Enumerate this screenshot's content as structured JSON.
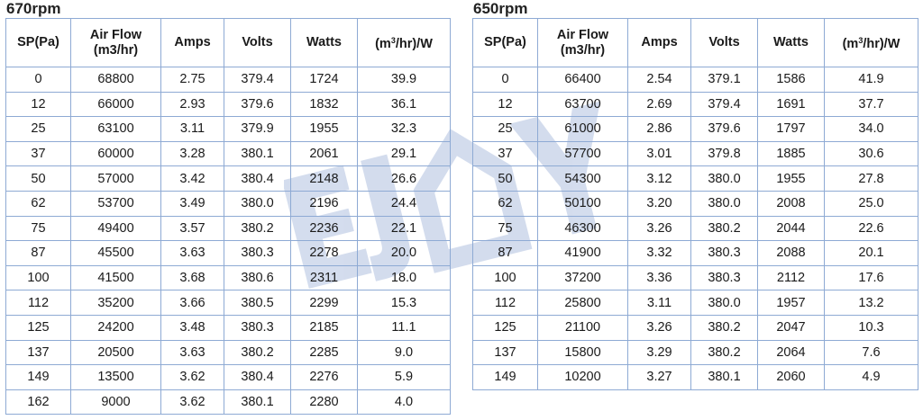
{
  "tables": [
    {
      "title": "670rpm",
      "headers": {
        "sp": "SP(Pa)",
        "airflow_line1": "Air Flow",
        "airflow_line2": "(m3/hr)",
        "amps": "Amps",
        "volts": "Volts",
        "watts": "Watts",
        "eff_prefix": "(m",
        "eff_sup": "3",
        "eff_suffix": "/hr)/W"
      },
      "rows": [
        [
          "0",
          "68800",
          "2.75",
          "379.4",
          "1724",
          "39.9"
        ],
        [
          "12",
          "66000",
          "2.93",
          "379.6",
          "1832",
          "36.1"
        ],
        [
          "25",
          "63100",
          "3.11",
          "379.9",
          "1955",
          "32.3"
        ],
        [
          "37",
          "60000",
          "3.28",
          "380.1",
          "2061",
          "29.1"
        ],
        [
          "50",
          "57000",
          "3.42",
          "380.4",
          "2148",
          "26.6"
        ],
        [
          "62",
          "53700",
          "3.49",
          "380.0",
          "2196",
          "24.4"
        ],
        [
          "75",
          "49400",
          "3.57",
          "380.2",
          "2236",
          "22.1"
        ],
        [
          "87",
          "45500",
          "3.63",
          "380.3",
          "2278",
          "20.0"
        ],
        [
          "100",
          "41500",
          "3.68",
          "380.6",
          "2311",
          "18.0"
        ],
        [
          "112",
          "35200",
          "3.66",
          "380.5",
          "2299",
          "15.3"
        ],
        [
          "125",
          "24200",
          "3.48",
          "380.3",
          "2185",
          "11.1"
        ],
        [
          "137",
          "20500",
          "3.63",
          "380.2",
          "2285",
          "9.0"
        ],
        [
          "149",
          "13500",
          "3.62",
          "380.4",
          "2276",
          "5.9"
        ],
        [
          "162",
          "9000",
          "3.62",
          "380.1",
          "2280",
          "4.0"
        ]
      ]
    },
    {
      "title": "650rpm",
      "headers": {
        "sp": "SP(Pa)",
        "airflow_line1": "Air Flow",
        "airflow_line2": "(m3/hr)",
        "amps": "Amps",
        "volts": "Volts",
        "watts": "Watts",
        "eff_prefix": "(m",
        "eff_sup": "3",
        "eff_suffix": "/hr)/W"
      },
      "rows": [
        [
          "0",
          "66400",
          "2.54",
          "379.1",
          "1586",
          "41.9"
        ],
        [
          "12",
          "63700",
          "2.69",
          "379.4",
          "1691",
          "37.7"
        ],
        [
          "25",
          "61000",
          "2.86",
          "379.6",
          "1797",
          "34.0"
        ],
        [
          "37",
          "57700",
          "3.01",
          "379.8",
          "1885",
          "30.6"
        ],
        [
          "50",
          "54300",
          "3.12",
          "380.0",
          "1955",
          "27.8"
        ],
        [
          "62",
          "50100",
          "3.20",
          "380.0",
          "2008",
          "25.0"
        ],
        [
          "75",
          "46300",
          "3.26",
          "380.2",
          "2044",
          "22.6"
        ],
        [
          "87",
          "41900",
          "3.32",
          "380.3",
          "2088",
          "20.1"
        ],
        [
          "100",
          "37200",
          "3.36",
          "380.3",
          "2112",
          "17.6"
        ],
        [
          "112",
          "25800",
          "3.11",
          "380.0",
          "1957",
          "13.2"
        ],
        [
          "125",
          "21100",
          "3.26",
          "380.2",
          "2047",
          "10.3"
        ],
        [
          "137",
          "15800",
          "3.29",
          "380.2",
          "2064",
          "7.6"
        ],
        [
          "149",
          "10200",
          "3.27",
          "380.1",
          "2060",
          "4.9"
        ]
      ]
    }
  ],
  "watermark": {
    "text": "EJOY",
    "color": "#9fb3d9"
  },
  "colors": {
    "border": "#4f81bd",
    "grid": "#8eaad4"
  }
}
